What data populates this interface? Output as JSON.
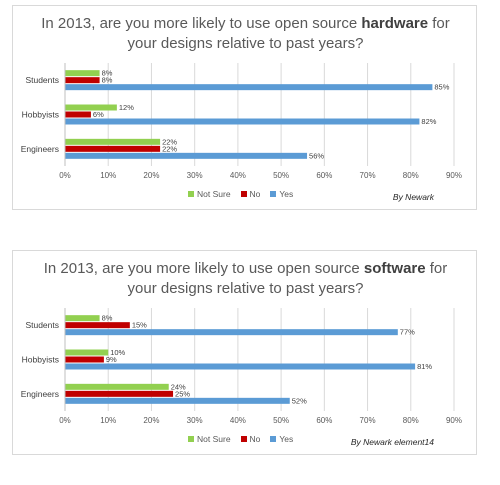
{
  "colors": {
    "not_sure": "#92d050",
    "no": "#c00000",
    "yes": "#5b9bd5",
    "grid": "#d9d9d9"
  },
  "legend": {
    "not_sure": "Not Sure",
    "no": "No",
    "yes": "Yes"
  },
  "charts": [
    {
      "title_pre": "In 2013, are you more likely to use open source ",
      "title_bold": "hardware",
      "title_post": " for",
      "title_line2": "your designs relative to past years?",
      "credit": "By Newark"
    },
    {
      "title_pre": "In 2013, are you more likely to use open source ",
      "title_bold": "software",
      "title_post": " for",
      "title_line2": "your designs relative to past years?",
      "credit": "By Newark element14"
    }
  ],
  "chart_data": [
    {
      "type": "bar",
      "orientation": "horizontal",
      "title": "In 2013, are you more likely to use open source hardware for your designs relative to past years?",
      "categories": [
        "Students",
        "Hobbyists",
        "Engineers"
      ],
      "series": [
        {
          "name": "Not Sure",
          "values": [
            8,
            12,
            22
          ]
        },
        {
          "name": "No",
          "values": [
            8,
            6,
            22
          ]
        },
        {
          "name": "Yes",
          "values": [
            85,
            82,
            56
          ]
        }
      ],
      "xlim": [
        0,
        90
      ],
      "xticks": [
        "0%",
        "10%",
        "20%",
        "30%",
        "40%",
        "50%",
        "60%",
        "70%",
        "80%",
        "90%"
      ],
      "grid": true,
      "legend_position": "bottom"
    },
    {
      "type": "bar",
      "orientation": "horizontal",
      "title": "In 2013, are you more likely to use open source software for your designs relative to past years?",
      "categories": [
        "Students",
        "Hobbyists",
        "Engineers"
      ],
      "series": [
        {
          "name": "Not Sure",
          "values": [
            8,
            10,
            24
          ]
        },
        {
          "name": "No",
          "values": [
            15,
            9,
            25
          ]
        },
        {
          "name": "Yes",
          "values": [
            77,
            81,
            52
          ]
        }
      ],
      "xlim": [
        0,
        90
      ],
      "xticks": [
        "0%",
        "10%",
        "20%",
        "30%",
        "40%",
        "50%",
        "60%",
        "70%",
        "80%",
        "90%"
      ],
      "grid": true,
      "legend_position": "bottom"
    }
  ]
}
